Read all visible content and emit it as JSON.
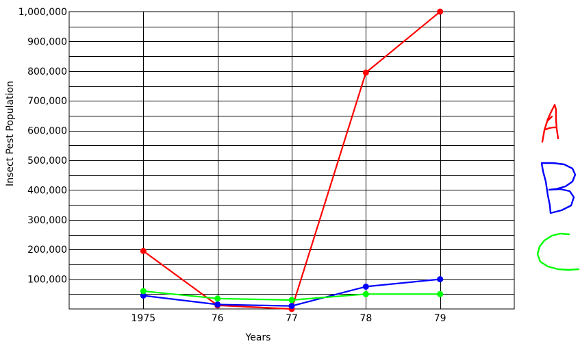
{
  "chart_data": {
    "type": "line",
    "title": "",
    "xlabel": "Years",
    "ylabel": "Insect Pest Population",
    "x_ticks": [
      "1975",
      "76",
      "77",
      "78",
      "79"
    ],
    "y_ticks": [
      "100,000",
      "200,000",
      "300,000",
      "400,000",
      "500,000",
      "600,000",
      "700,000",
      "800,000",
      "900,000",
      "1,000,000"
    ],
    "xlim": [
      1974,
      1980
    ],
    "ylim": [
      0,
      1000000
    ],
    "grid": true,
    "x": [
      1975,
      1976,
      1977,
      1978,
      1979
    ],
    "series": [
      {
        "name": "A",
        "color": "#ff0000",
        "values": [
          195000,
          12000,
          0,
          795000,
          1000000
        ]
      },
      {
        "name": "B",
        "color": "#0000ff",
        "values": [
          45000,
          15000,
          10000,
          75000,
          100000
        ]
      },
      {
        "name": "C",
        "color": "#00ff00",
        "values": [
          60000,
          35000,
          30000,
          50000,
          50000
        ]
      }
    ],
    "legend_placement": "right"
  }
}
